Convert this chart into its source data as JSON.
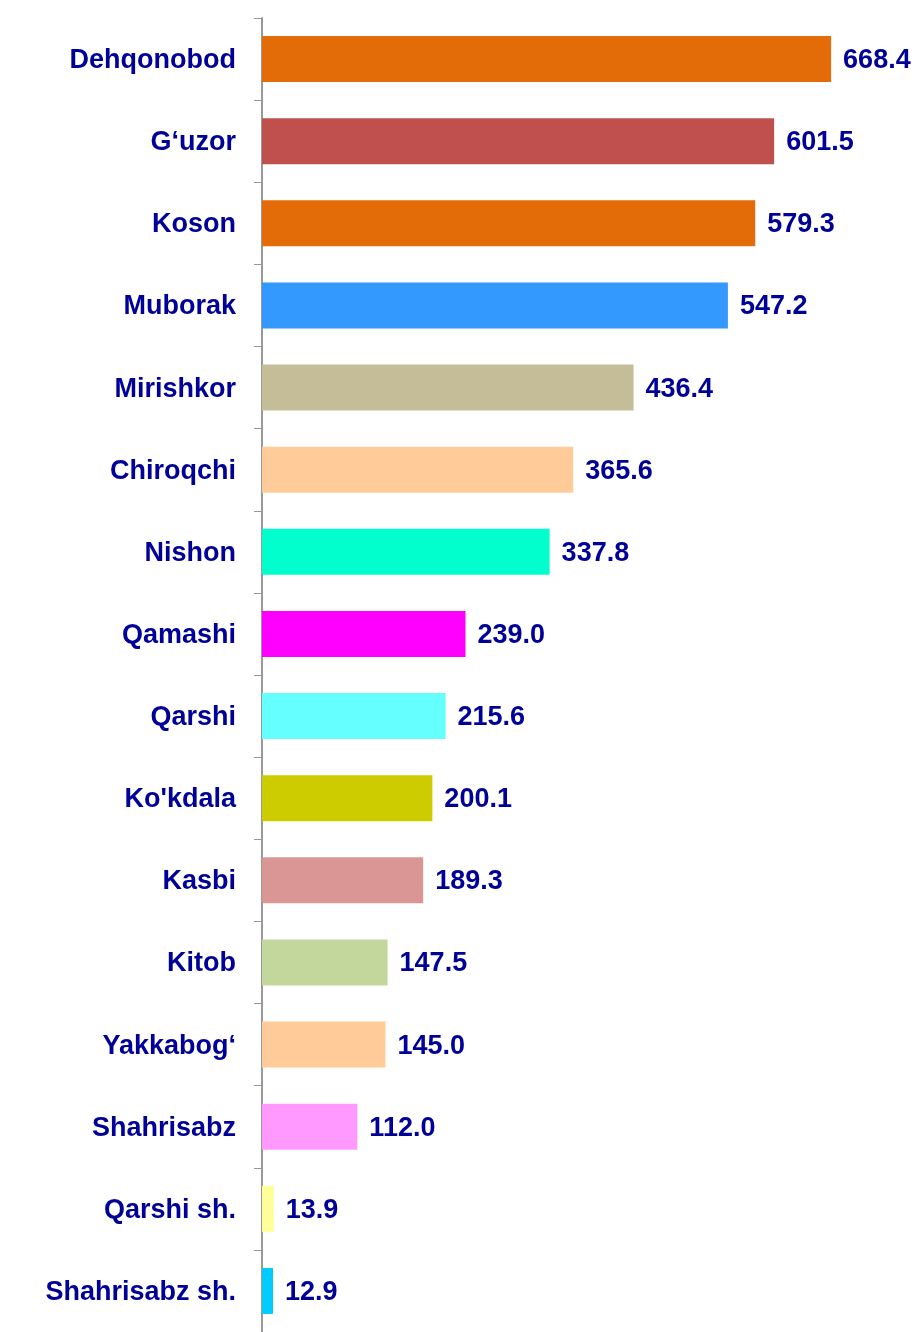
{
  "chart_data": {
    "type": "bar",
    "orientation": "horizontal",
    "value_labels": [
      "668.4",
      "601.5",
      "579.3",
      "547.2",
      "436.4",
      "365.6",
      "337.8",
      "239.0",
      "215.6",
      "200.1",
      "189.3",
      "147.5",
      "145.0",
      "112.0",
      "13.9",
      "12.9"
    ],
    "categories": [
      "Dehqonobod",
      "G‘uzor",
      "Koson",
      "Muborak",
      "Mirishkor",
      "Chiroqchi",
      "Nishon",
      "Qamashi",
      "Qarshi",
      "Ko'kdala",
      "Kasbi",
      "Kitob",
      "Yakkabog‘",
      "Shahrisabz",
      "Qarshi sh.",
      "Shahrisabz sh."
    ],
    "values": [
      668.4,
      601.5,
      579.3,
      547.2,
      436.4,
      365.6,
      337.8,
      239.0,
      215.6,
      200.1,
      189.3,
      147.5,
      145.0,
      112.0,
      13.9,
      12.9
    ],
    "colors": [
      "#e36c09",
      "#c0504d",
      "#e36c09",
      "#3399ff",
      "#c4bd97",
      "#ffcc99",
      "#00ffcc",
      "#ff00ff",
      "#66ffff",
      "#cccc00",
      "#d99694",
      "#c3d69b",
      "#ffcc99",
      "#ff99ff",
      "#ffff99",
      "#00ccff"
    ]
  }
}
